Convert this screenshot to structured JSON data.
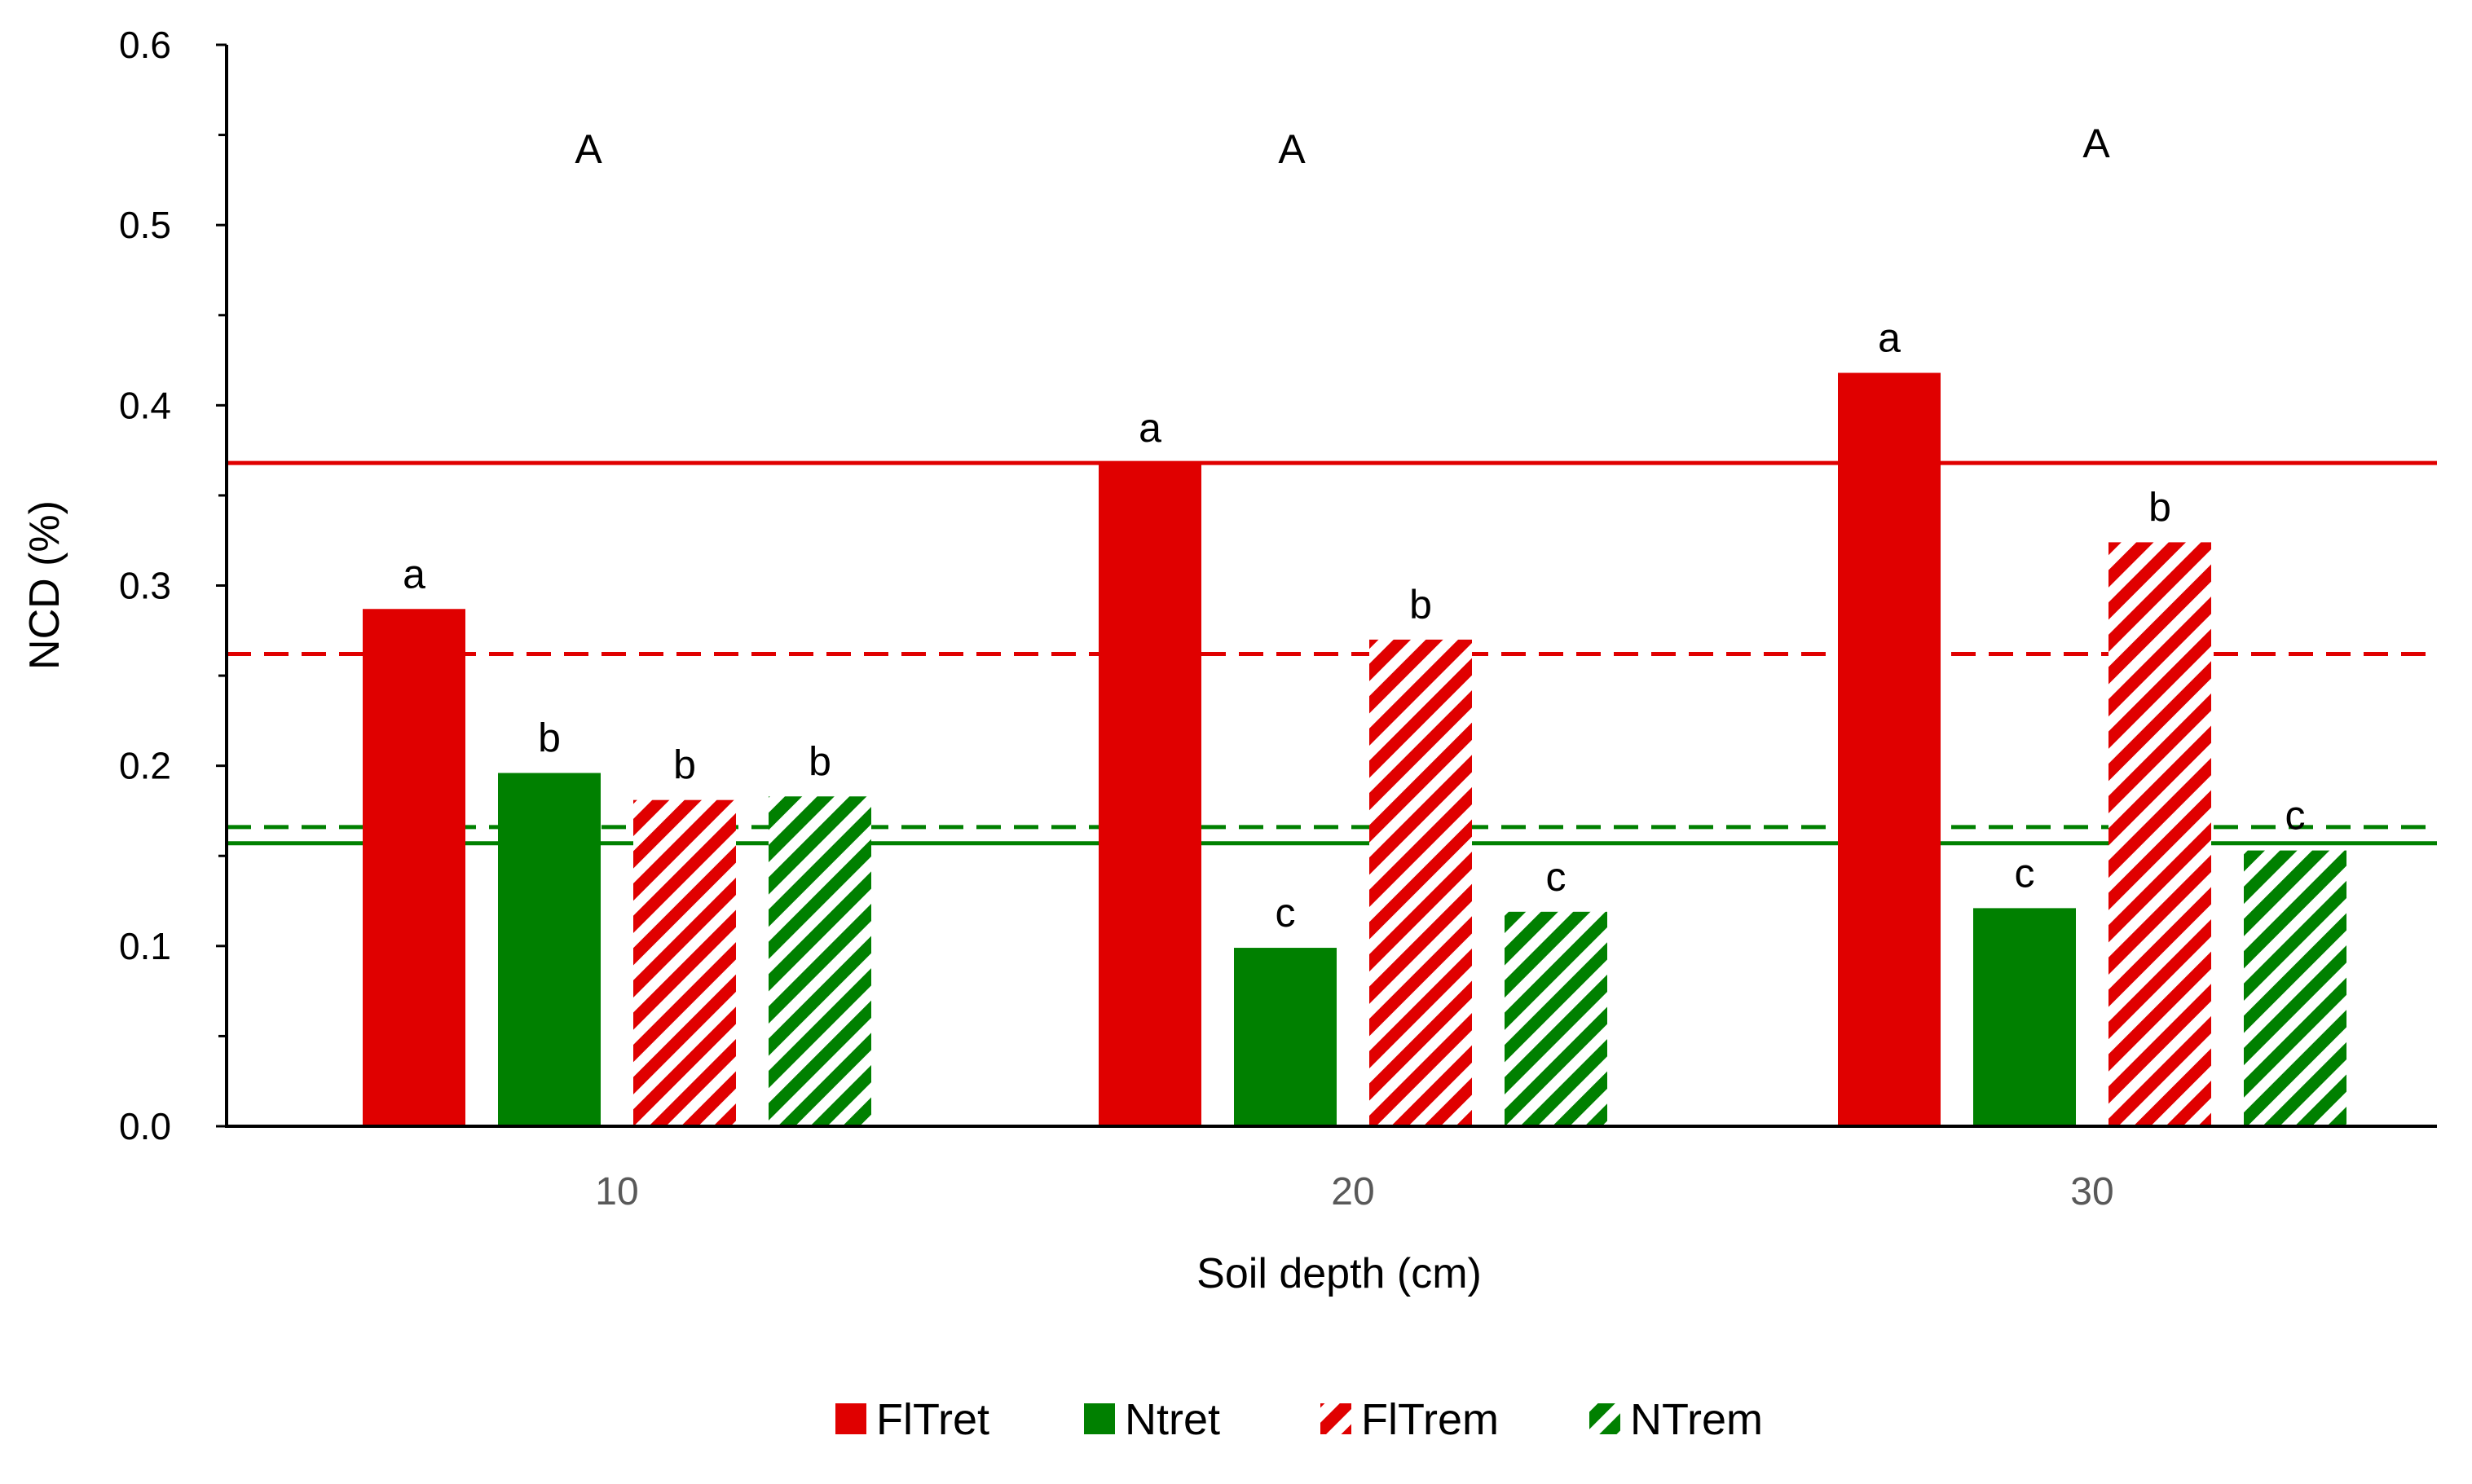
{
  "chart_data": {
    "type": "bar",
    "xlabel": "Soil depth (cm)",
    "ylabel": "NCD (%)",
    "ylim": [
      0,
      0.6
    ],
    "y_ticks": [
      "0.0",
      "0.1",
      "0.2",
      "0.3",
      "0.4",
      "0.5",
      "0.6"
    ],
    "categories": [
      "10",
      "20",
      "30"
    ],
    "series": [
      {
        "name": "FlTret",
        "color": "#e00000",
        "pattern": "solid",
        "values": [
          0.287,
          0.368,
          0.418
        ],
        "letters": [
          "a",
          "a",
          "a"
        ]
      },
      {
        "name": "Ntret",
        "color": "#008000",
        "pattern": "solid",
        "values": [
          0.196,
          0.099,
          0.121
        ],
        "letters": [
          "b",
          "c",
          "c"
        ]
      },
      {
        "name": "FlTrem",
        "color": "#e00000",
        "pattern": "hatch",
        "values": [
          0.181,
          0.27,
          0.324
        ],
        "letters": [
          "b",
          "b",
          "b"
        ]
      },
      {
        "name": "NTrem",
        "color": "#008000",
        "pattern": "hatch",
        "values": [
          0.183,
          0.119,
          0.153
        ],
        "letters": [
          "b",
          "c",
          "c"
        ]
      }
    ],
    "group_letters": [
      "A",
      "A",
      "A"
    ],
    "reference_lines": [
      {
        "name": "FlTret mean",
        "value": 0.368,
        "color": "#e00000",
        "style": "solid"
      },
      {
        "name": "FlTrem mean",
        "value": 0.262,
        "color": "#e00000",
        "style": "dashed"
      },
      {
        "name": "NTrem mean",
        "value": 0.166,
        "color": "#008000",
        "style": "dashed"
      },
      {
        "name": "Ntret mean",
        "value": 0.157,
        "color": "#008000",
        "style": "solid"
      }
    ],
    "legend": {
      "position": "bottom",
      "entries": [
        "FlTret",
        "Ntret",
        "FlTrem",
        "NTrem"
      ]
    },
    "grid": false
  }
}
